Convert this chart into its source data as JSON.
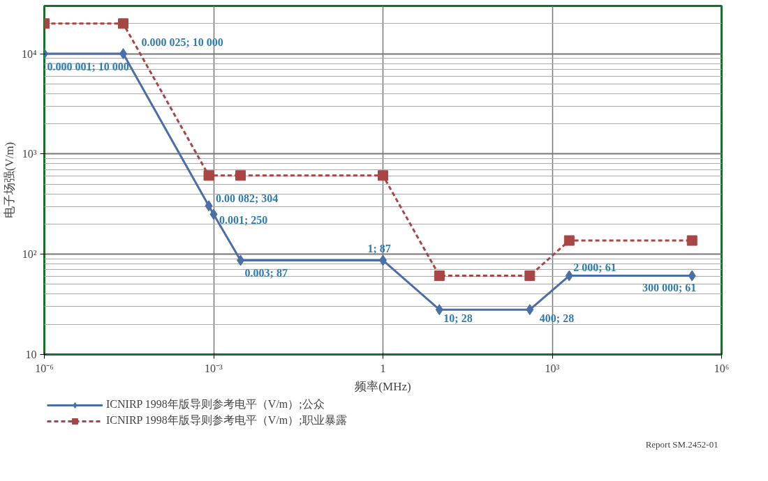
{
  "chart_data": {
    "type": "line",
    "xlabel": "频率(MHz)",
    "ylabel": "电子场强(V/m)",
    "log": "xy",
    "xlim": [
      1e-06,
      1000000
    ],
    "ylim": [
      10,
      30000
    ],
    "xticks": [
      {
        "value": 1e-06,
        "label": "10⁻⁶"
      },
      {
        "value": 0.001,
        "label": "10⁻³"
      },
      1,
      {
        "value": 1000,
        "label": "10³"
      },
      {
        "value": 1000000,
        "label": "10⁶"
      }
    ],
    "yticks": [
      10,
      {
        "value": 100,
        "label": "10²"
      },
      {
        "value": 1000,
        "label": "10³"
      },
      {
        "value": 10000,
        "label": "10⁴"
      }
    ],
    "grid": true,
    "legend": "bottom",
    "series": [
      {
        "name": "ICNIRP 1998年版导则参考电平（V/m）;公众",
        "color": "#4a6ea8",
        "marker": "diamond",
        "line_style": "solid",
        "x": [
          1e-06,
          2.5e-05,
          0.00082,
          0.001,
          0.003,
          1,
          10,
          400,
          2000,
          300000
        ],
        "values": [
          10000,
          10000,
          304,
          250,
          87,
          87,
          28,
          28,
          61,
          61
        ],
        "value_labels": [
          "0.000 001; 10 000",
          "0.000 025; 10 000",
          "0.00 082; 304",
          "0.001; 250",
          "0.003; 87",
          "1; 87",
          "10; 28",
          "400; 28",
          "2 000; 61",
          "300 000; 61"
        ]
      },
      {
        "name": "ICNIRP 1998年版导则参考电平（V/m）;职业暴露",
        "color": "#a84545",
        "marker": "square",
        "line_style": "dashed",
        "x": [
          1e-06,
          2.5e-05,
          0.00082,
          0.003,
          1,
          10,
          400,
          2000,
          300000
        ],
        "values": [
          20000,
          20000,
          610,
          610,
          610,
          61,
          61,
          137,
          137
        ]
      }
    ],
    "annotations": [
      "Report SM.2452-01"
    ]
  }
}
